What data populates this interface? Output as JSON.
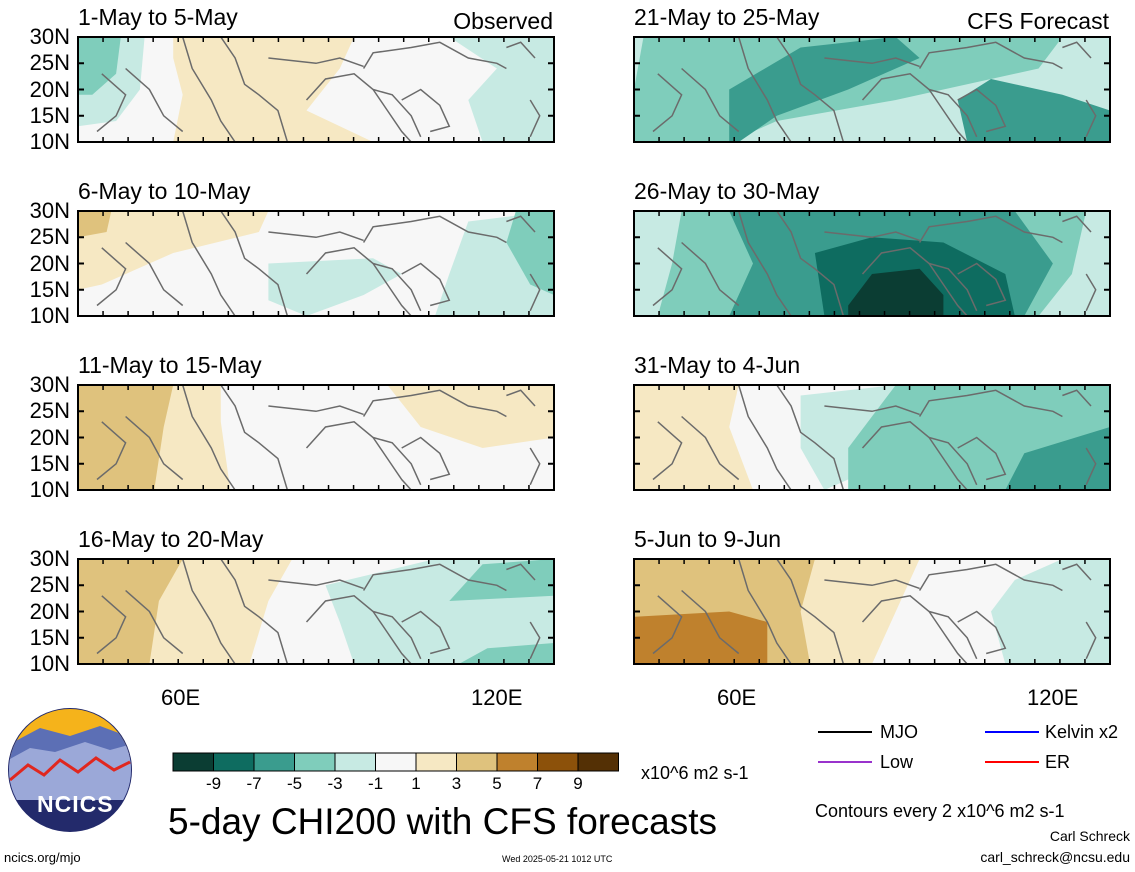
{
  "panels": [
    {
      "title": "1-May to 5-May",
      "tag": "Observed"
    },
    {
      "title": "6-May to 10-May",
      "tag": ""
    },
    {
      "title": "11-May to 15-May",
      "tag": ""
    },
    {
      "title": "16-May to 20-May",
      "tag": ""
    },
    {
      "title": "21-May to 25-May",
      "tag": "CFS Forecast"
    },
    {
      "title": "26-May to 30-May",
      "tag": ""
    },
    {
      "title": "31-May to 4-Jun",
      "tag": ""
    },
    {
      "title": "5-Jun to 9-Jun",
      "tag": ""
    }
  ],
  "lat_labels": [
    "30N",
    "25N",
    "20N",
    "15N",
    "10N"
  ],
  "lon_labels": [
    "60E",
    "120E"
  ],
  "colorbar": {
    "ticks": [
      "-9",
      "-7",
      "-5",
      "-3",
      "-1",
      "1",
      "3",
      "5",
      "7",
      "9"
    ],
    "units": "x10^6 m2 s-1",
    "colors": [
      "#0b3d33",
      "#0e6c60",
      "#3a9c8e",
      "#7fcdbb",
      "#c7eae3",
      "#f7f7f7",
      "#f6e8c3",
      "#dfc27d",
      "#bf812d",
      "#8c510a",
      "#543005"
    ]
  },
  "legend": {
    "items": [
      {
        "label": "MJO",
        "color": "#000000"
      },
      {
        "label": "Kelvin x2",
        "color": "#0000ff"
      },
      {
        "label": "Low",
        "color": "#9932cc"
      },
      {
        "label": "ER",
        "color": "#ff0000"
      }
    ]
  },
  "title": "5-day CHI200 with CFS forecasts",
  "contours_note": "Contours every 2 x10^6 m2 s-1",
  "author": "Carl Schreck",
  "email": "carl_schreck@ncsu.edu",
  "url": "ncics.org/mjo",
  "timestamp": "Wed 2025-05-21 1012 UTC",
  "logo_text": "NCICS"
}
